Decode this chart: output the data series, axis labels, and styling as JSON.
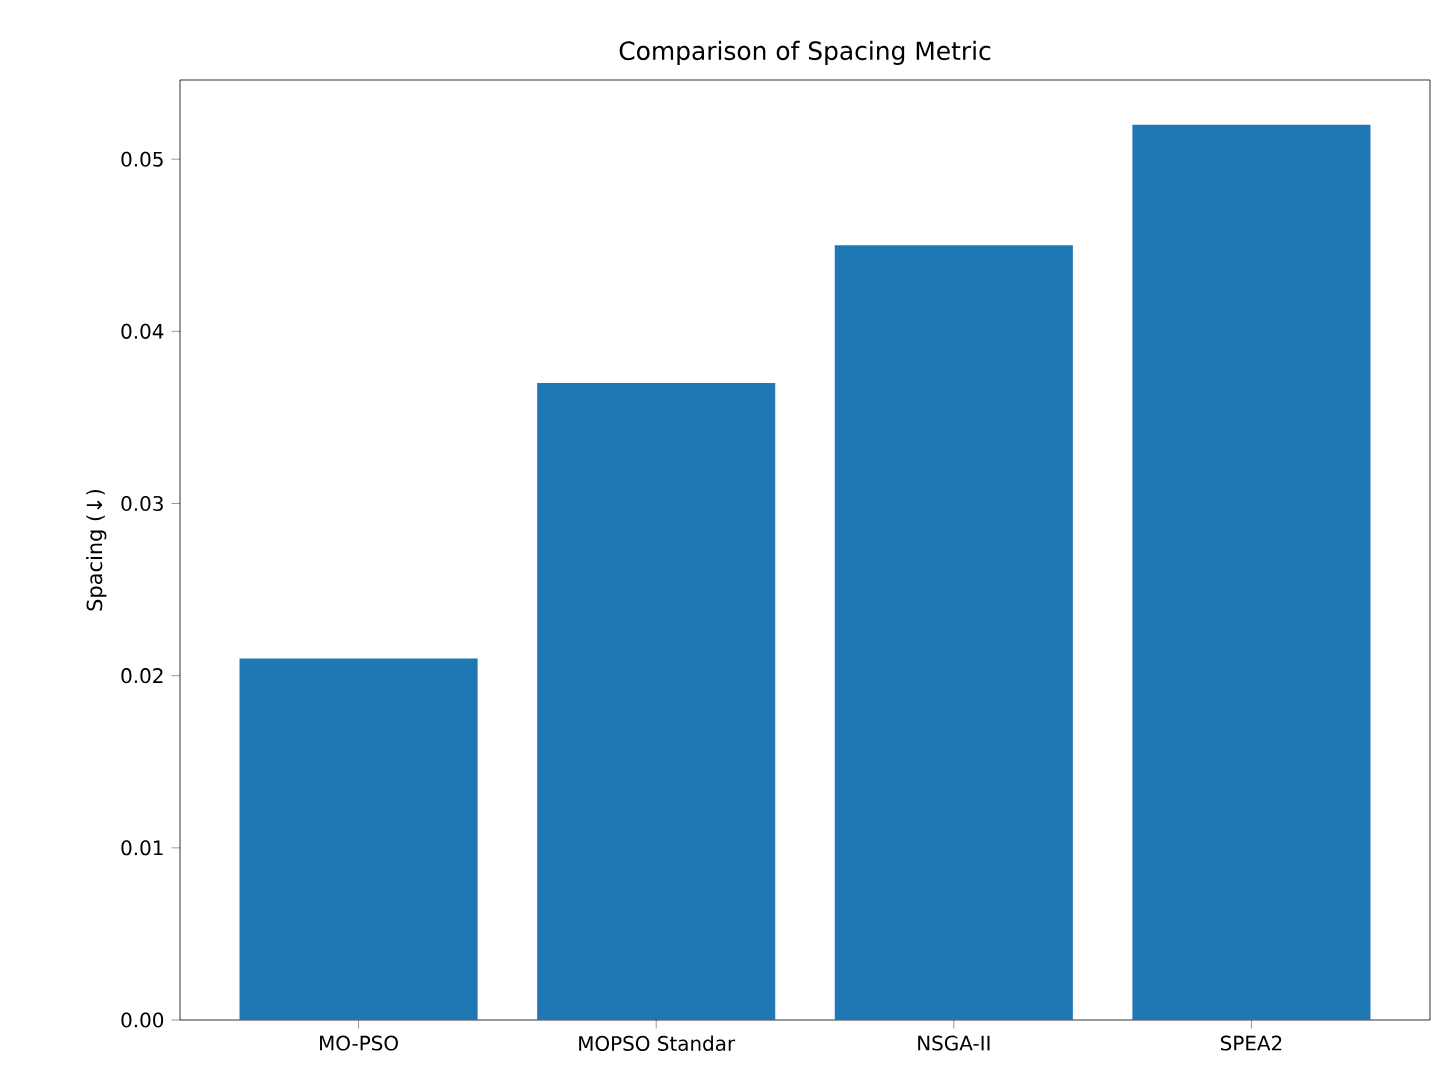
{
  "chart_data": {
    "type": "bar",
    "title": "Comparison of Spacing Metric",
    "ylabel": "Spacing (↓)",
    "categories": [
      "MO-PSO",
      "MOPSO Standar",
      "NSGA-II",
      "SPEA2"
    ],
    "values": [
      0.021,
      0.037,
      0.045,
      0.052
    ],
    "color": "#1f77b4",
    "ylim": [
      0,
      0.0546
    ],
    "yticks": [
      {
        "value": 0,
        "label": "0.00"
      },
      {
        "value": 0.01,
        "label": "0.01"
      },
      {
        "value": 0.02,
        "label": "0.02"
      },
      {
        "value": 0.03,
        "label": "0.03"
      },
      {
        "value": 0.04,
        "label": "0.04"
      },
      {
        "value": 0.05,
        "label": "0.05"
      }
    ]
  }
}
